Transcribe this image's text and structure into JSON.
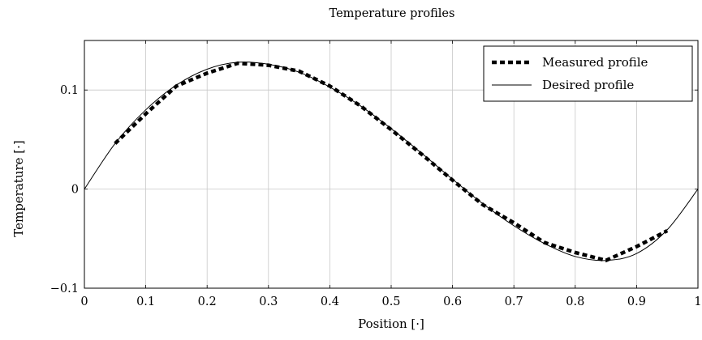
{
  "chart_data": {
    "type": "line",
    "title": "Temperature profiles",
    "xlabel": "Position [·]",
    "ylabel": "Temperature [·]",
    "xlim": [
      0,
      1
    ],
    "ylim": [
      -0.1,
      0.15
    ],
    "grid": true,
    "legend_position": "top-right",
    "x_ticks": [
      0,
      0.1,
      0.2,
      0.3,
      0.4,
      0.5,
      0.6,
      0.7,
      0.8,
      0.9,
      1
    ],
    "x_tick_labels": [
      "0",
      "0.1",
      "0.2",
      "0.3",
      "0.4",
      "0.5",
      "0.6",
      "0.7",
      "0.8",
      "0.9",
      "1"
    ],
    "y_ticks": [
      -0.1,
      0,
      0.1
    ],
    "y_tick_labels": [
      "−0.1",
      "0",
      "0.1"
    ],
    "series": [
      {
        "name": "Measured profile",
        "style": "thick-dashed",
        "color": "#000000",
        "x": [
          0.05,
          0.1,
          0.15,
          0.2,
          0.25,
          0.3,
          0.35,
          0.4,
          0.45,
          0.5,
          0.55,
          0.6,
          0.65,
          0.7,
          0.75,
          0.8,
          0.85,
          0.9,
          0.95
        ],
        "y": [
          0.046,
          0.076,
          0.104,
          0.117,
          0.127,
          0.125,
          0.119,
          0.104,
          0.084,
          0.06,
          0.035,
          0.009,
          -0.016,
          -0.034,
          -0.054,
          -0.064,
          -0.072,
          -0.058,
          -0.042
        ]
      },
      {
        "name": "Desired profile",
        "style": "thin-solid",
        "color": "#000000",
        "x": [
          0,
          0.05,
          0.1,
          0.15,
          0.2,
          0.25,
          0.3,
          0.35,
          0.4,
          0.45,
          0.5,
          0.55,
          0.6,
          0.65,
          0.7,
          0.75,
          0.8,
          0.85,
          0.9,
          0.95,
          1.0
        ],
        "y": [
          0,
          0.046,
          0.08,
          0.105,
          0.121,
          0.128,
          0.126,
          0.118,
          0.103,
          0.084,
          0.061,
          0.036,
          0.01,
          -0.015,
          -0.037,
          -0.055,
          -0.068,
          -0.072,
          -0.065,
          -0.041,
          0
        ]
      }
    ]
  }
}
